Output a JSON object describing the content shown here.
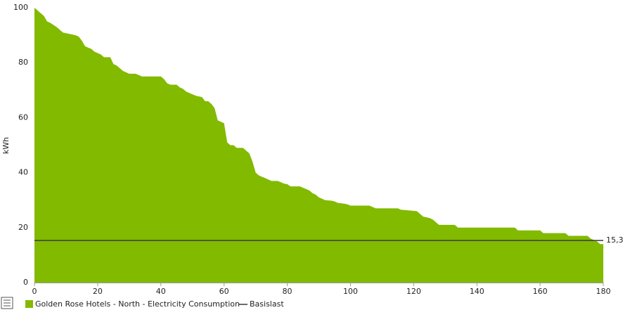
{
  "chart_data": {
    "type": "area",
    "y_label": "kWh",
    "x": [
      0,
      1,
      3,
      4,
      5,
      7,
      9,
      11,
      13,
      14,
      15,
      16,
      17,
      18,
      19,
      21,
      22,
      24,
      25,
      26,
      27,
      28,
      29,
      30,
      32,
      33,
      34,
      40,
      41,
      42,
      43,
      45,
      46,
      47,
      48,
      49,
      50,
      51,
      53,
      54,
      55,
      56,
      57,
      58,
      59,
      60,
      61,
      62,
      63,
      64,
      66,
      67,
      68,
      69,
      70,
      71,
      72,
      73,
      74,
      75,
      77,
      78,
      79,
      80,
      81,
      84,
      85,
      86,
      87,
      88,
      89,
      90,
      91,
      92,
      94,
      95,
      96,
      98,
      99,
      100,
      106,
      107,
      108,
      115,
      116,
      118,
      121,
      122,
      123,
      125,
      126,
      127,
      128,
      133,
      134,
      152,
      153,
      160,
      161,
      168,
      169,
      175,
      176,
      177,
      178,
      179,
      180
    ],
    "series": [
      {
        "name": "Golden Rose Hotels - North - Electricity Consumption",
        "color": "#82ba00",
        "values": [
          100,
          99,
          97,
          95,
          94.5,
          93,
          91,
          90.5,
          90,
          89.5,
          88,
          86,
          85.5,
          85,
          84,
          83,
          82,
          82,
          79.5,
          79,
          78,
          77,
          76.5,
          76,
          76,
          75.5,
          75,
          75,
          74,
          72.5,
          72,
          72,
          71,
          70.5,
          69.5,
          69,
          68.5,
          68,
          67.5,
          66,
          66,
          65,
          63.5,
          59,
          58.5,
          58,
          51,
          50,
          50,
          49,
          49,
          48,
          47,
          44,
          40,
          39,
          38.5,
          38,
          37.5,
          37,
          37,
          36.5,
          36,
          35.8,
          35,
          35,
          34.5,
          34,
          33.5,
          32.5,
          32,
          31,
          30.5,
          30,
          29.8,
          29.5,
          29,
          28.7,
          28.5,
          28,
          28,
          27.5,
          27,
          27,
          26.5,
          26.3,
          26,
          25,
          24,
          23.5,
          23,
          22,
          21,
          21,
          20,
          20,
          19,
          19,
          18,
          18,
          17,
          17,
          16,
          15.5,
          15,
          14,
          14
        ]
      }
    ],
    "baseline": {
      "name": "Basislast",
      "color": "#3a3a3a",
      "value": 15.3,
      "value_label": "15,3"
    },
    "xlim": [
      0,
      180
    ],
    "xticks": [
      0,
      20,
      40,
      60,
      80,
      100,
      120,
      140,
      160,
      180
    ],
    "ylim": [
      0,
      100
    ],
    "yticks": [
      0,
      20,
      40,
      60,
      80,
      100
    ],
    "grid": false
  }
}
